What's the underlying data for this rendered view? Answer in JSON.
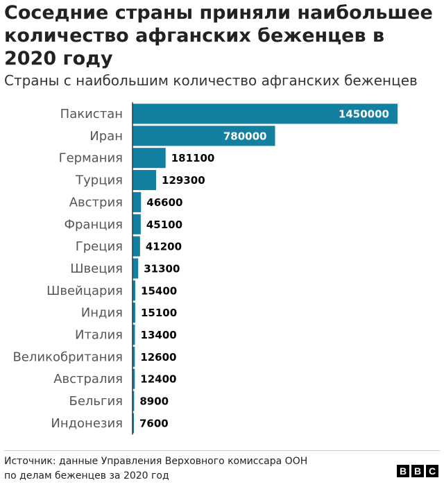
{
  "title": "Соседние страны приняли наибольшее количество афганских беженцев в 2020 году",
  "subtitle": "Страны с наибольшим количество афганских беженцев",
  "source": {
    "line1": "Источник: данные Управления Верховного комиссара ООН",
    "line2": "по делам беженцев за 2020 год"
  },
  "logo": {
    "letters": [
      "B",
      "B",
      "C"
    ]
  },
  "colors": {
    "bar": "#1380a1",
    "axis": "#333333",
    "label_inside": "#ffffff",
    "label_outside": "#000000"
  },
  "chart_data": {
    "type": "bar",
    "orientation": "horizontal",
    "categories": [
      "Пакистан",
      "Иран",
      "Германия",
      "Турция",
      "Австрия",
      "Франция",
      "Греция",
      "Швеция",
      "Швейцария",
      "Индия",
      "Италия",
      "Великобритания",
      "Австралия",
      "Бельгия",
      "Индонезия"
    ],
    "values": [
      1450000,
      780000,
      181100,
      129300,
      46600,
      45100,
      41200,
      31300,
      15400,
      15100,
      13400,
      12600,
      12400,
      8900,
      7600
    ],
    "data_labels": [
      "1450000",
      "780000",
      "181100",
      "129300",
      "46600",
      "45100",
      "41200",
      "31300",
      "15400",
      "15100",
      "13400",
      "12600",
      "12400",
      "8900",
      "7600"
    ],
    "xlim": [
      0,
      1450000
    ],
    "grid": false,
    "legend": "none",
    "title": "Соседние страны приняли наибольшее количество афганских беженцев в 2020 году",
    "subtitle": "Страны с наибольшим количество афганских беженцев"
  }
}
